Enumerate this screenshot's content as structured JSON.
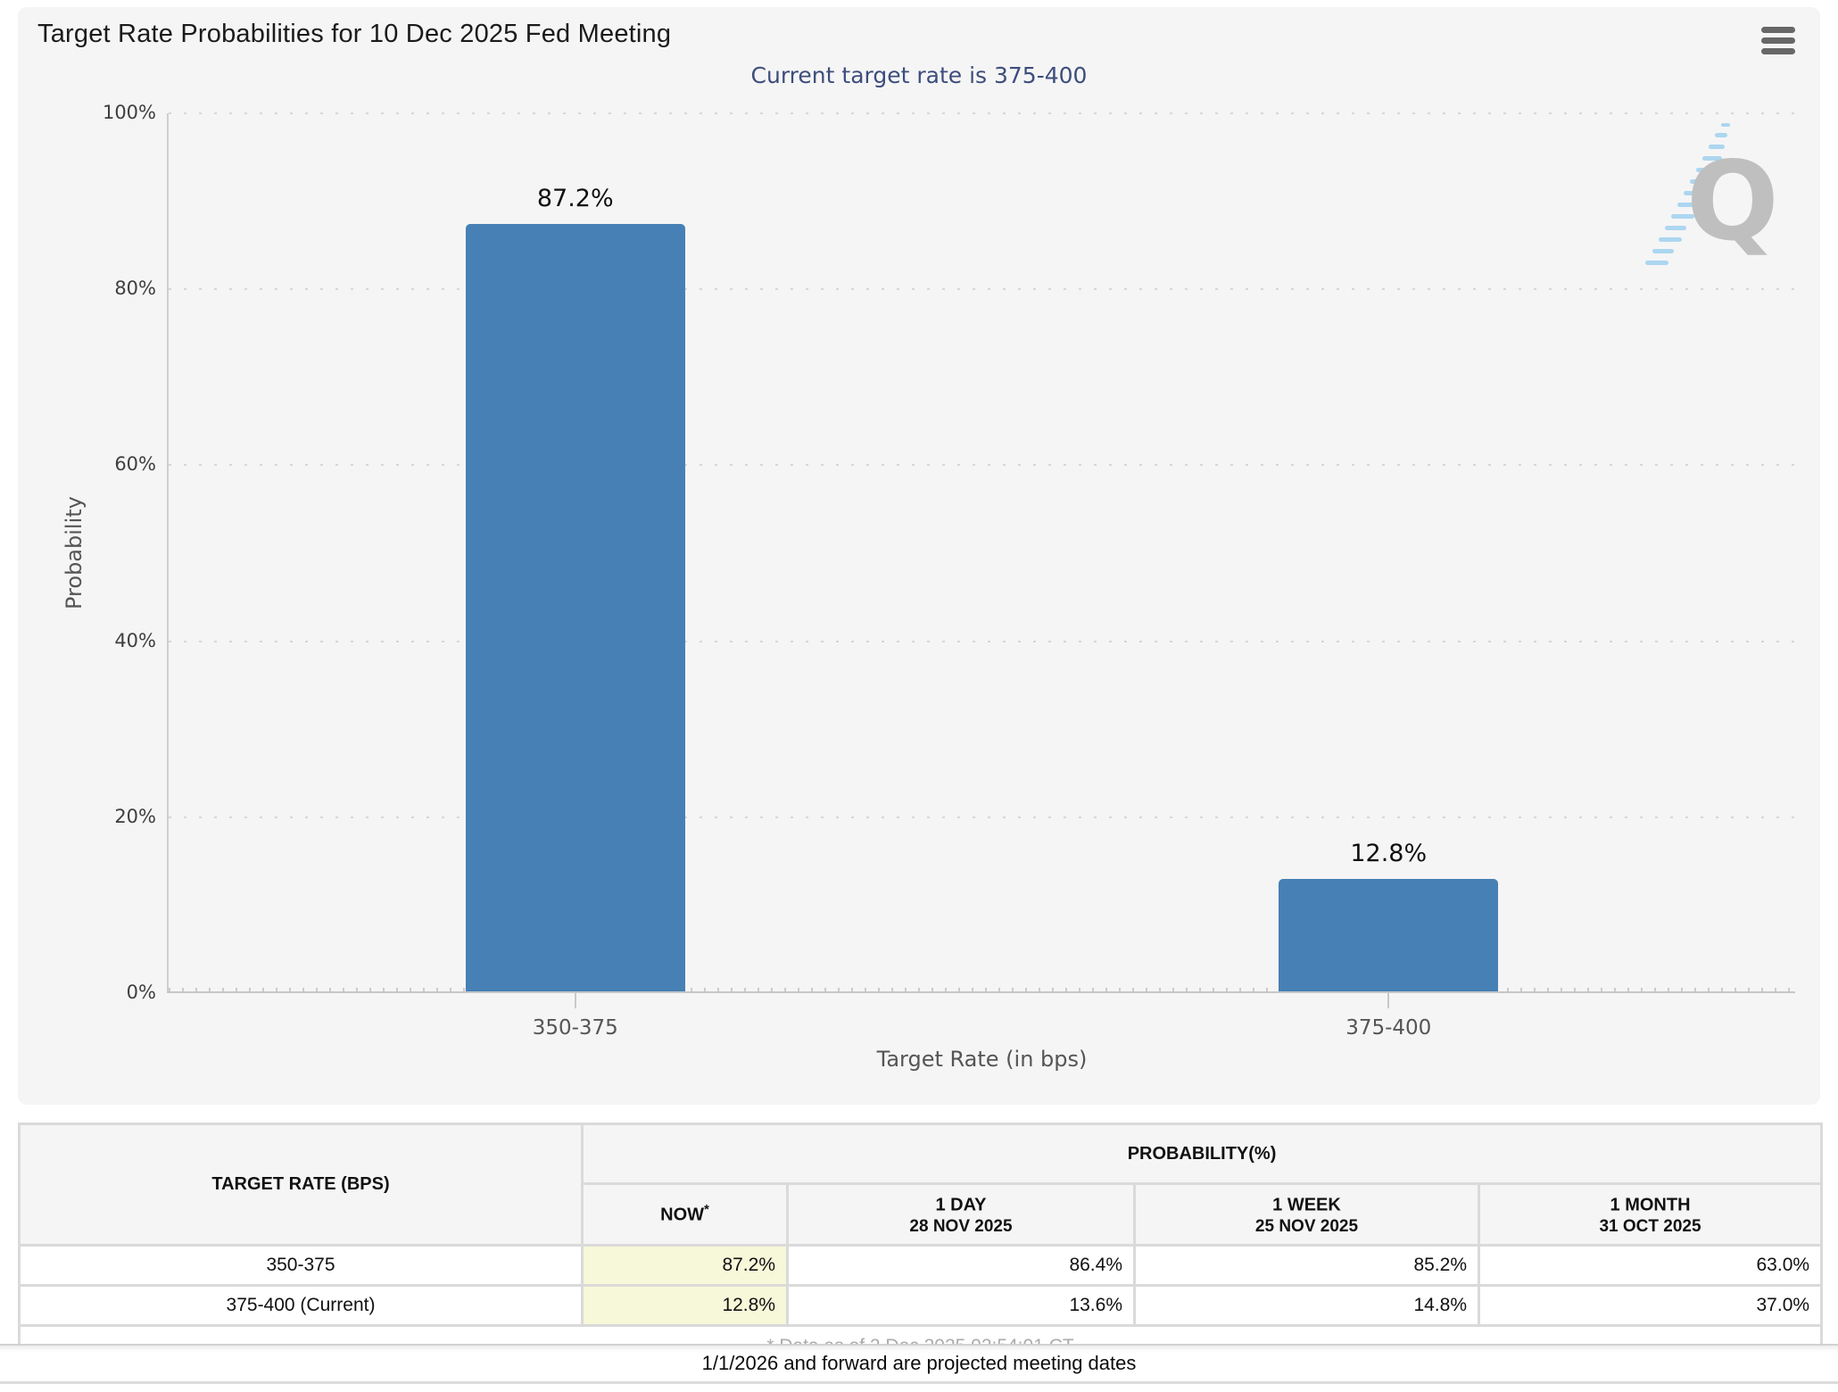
{
  "header": {
    "title": "Target Rate Probabilities for 10 Dec 2025 Fed Meeting",
    "subtitle": "Current target rate is 375-400",
    "menu_icon": "hamburger-menu-icon"
  },
  "colors": {
    "bar": "#4680b4",
    "subtitle_text": "#3e4d7d",
    "panel_background": "#f5f5f5",
    "now_highlight": "#f7f7d9",
    "watermark_gray": "#bdbdbd",
    "watermark_blue": "#a9d5f0"
  },
  "chart_data": {
    "type": "bar",
    "title": "Target Rate Probabilities for 10 Dec 2025 Fed Meeting",
    "subtitle": "Current target rate is 375-400",
    "categories": [
      "350-375",
      "375-400"
    ],
    "values": [
      87.2,
      12.8
    ],
    "value_labels": [
      "87.2%",
      "12.8%"
    ],
    "xlabel": "Target Rate (in bps)",
    "ylabel": "Probability",
    "ylim": [
      0,
      100
    ],
    "ytick_step": 20,
    "ytick_labels": [
      "0%",
      "20%",
      "40%",
      "60%",
      "80%",
      "100%"
    ],
    "grid": "horizontal-dotted",
    "legend": "none",
    "bar_color": "#4680b4"
  },
  "watermark": {
    "letter": "Q"
  },
  "table": {
    "col1_header": "TARGET RATE (BPS)",
    "group_header": "PROBABILITY(%)",
    "columns": [
      {
        "label": "NOW",
        "sup": "*",
        "sub": ""
      },
      {
        "label": "1 DAY",
        "sup": "",
        "sub": "28 NOV 2025"
      },
      {
        "label": "1 WEEK",
        "sup": "",
        "sub": "25 NOV 2025"
      },
      {
        "label": "1 MONTH",
        "sup": "",
        "sub": "31 OCT 2025"
      }
    ],
    "rows": [
      {
        "rate": "350-375",
        "now": "87.2%",
        "day": "86.4%",
        "week": "85.2%",
        "month": "63.0%"
      },
      {
        "rate": "375-400 (Current)",
        "now": "12.8%",
        "day": "13.6%",
        "week": "14.8%",
        "month": "37.0%"
      }
    ],
    "footnote": "* Data as of 2 Dec 2025 02:54:01 CT"
  },
  "footer": {
    "note": "1/1/2026 and forward are projected meeting dates"
  }
}
